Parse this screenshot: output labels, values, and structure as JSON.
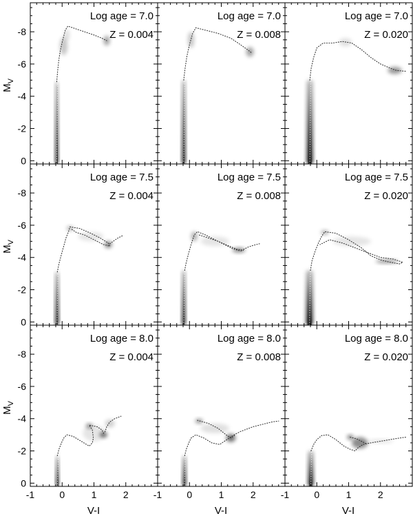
{
  "figure": {
    "xlabel": "V-I",
    "ylabel_main": "M",
    "ylabel_sub": "V"
  },
  "chart_data": [
    {
      "type": "scatter",
      "log_age_label": "Log age = 7.0",
      "z_label": "Z = 0.004",
      "xlim": [
        -1,
        3
      ],
      "ylim": [
        0.2,
        -9.8
      ],
      "y_ticks": [
        0,
        -2,
        -4,
        -6,
        -8
      ],
      "x_ticks": [
        -1,
        0,
        1,
        2
      ],
      "ms": {
        "x0": -0.22,
        "x1": -0.12,
        "y_top": -4.9,
        "y_bot": 0.2
      },
      "track": [
        [
          -0.17,
          -4.9
        ],
        [
          -0.14,
          -5.6
        ],
        [
          -0.1,
          -6.3
        ],
        [
          -0.05,
          -6.9
        ],
        [
          0.02,
          -7.5
        ],
        [
          0.1,
          -8.1
        ],
        [
          0.18,
          -8.35
        ],
        [
          0.4,
          -8.2
        ],
        [
          0.7,
          -8.0
        ],
        [
          1.0,
          -7.8
        ],
        [
          1.25,
          -7.6
        ],
        [
          1.4,
          -7.45
        ]
      ],
      "blobs": [
        [
          0.05,
          -7.1,
          0.12,
          0.55,
          0.22
        ],
        [
          0.15,
          -7.8,
          0.09,
          0.35,
          0.12
        ],
        [
          1.4,
          -7.45,
          0.1,
          0.3,
          0.35
        ]
      ]
    },
    {
      "type": "scatter",
      "log_age_label": "Log age = 7.0",
      "z_label": "Z = 0.008",
      "xlim": [
        -1,
        3
      ],
      "ylim": [
        0.2,
        -9.8
      ],
      "y_ticks": [
        0,
        -2,
        -4,
        -6,
        -8
      ],
      "x_ticks": [
        -1,
        0,
        1,
        2
      ],
      "ms": {
        "x0": -0.24,
        "x1": -0.12,
        "y_top": -5.0,
        "y_bot": 0.2
      },
      "track": [
        [
          -0.18,
          -5.0
        ],
        [
          -0.14,
          -5.7
        ],
        [
          -0.08,
          -6.5
        ],
        [
          0.0,
          -7.2
        ],
        [
          0.1,
          -7.9
        ],
        [
          0.2,
          -8.25
        ],
        [
          0.5,
          -8.1
        ],
        [
          0.9,
          -7.9
        ],
        [
          1.3,
          -7.6
        ],
        [
          1.6,
          -7.2
        ],
        [
          1.85,
          -6.85
        ],
        [
          1.95,
          -6.7
        ]
      ],
      "blobs": [
        [
          0.05,
          -7.5,
          0.1,
          0.5,
          0.22
        ],
        [
          1.9,
          -6.75,
          0.12,
          0.3,
          0.35
        ]
      ]
    },
    {
      "type": "scatter",
      "log_age_label": "Log age = 7.0",
      "z_label": "Z = 0.020",
      "xlim": [
        -1,
        3
      ],
      "ylim": [
        0.2,
        -9.8
      ],
      "y_ticks": [
        0,
        -2,
        -4,
        -6,
        -8
      ],
      "x_ticks": [
        -1,
        0,
        1,
        2
      ],
      "ms": {
        "x0": -0.32,
        "x1": -0.12,
        "y_top": -5.0,
        "y_bot": 0.2
      },
      "track": [
        [
          -0.22,
          -5.0
        ],
        [
          -0.18,
          -5.7
        ],
        [
          -0.1,
          -6.4
        ],
        [
          0.0,
          -7.0
        ],
        [
          0.2,
          -7.3
        ],
        [
          0.5,
          -7.3
        ],
        [
          0.8,
          -7.4
        ],
        [
          1.1,
          -7.3
        ],
        [
          1.4,
          -6.9
        ],
        [
          1.7,
          -6.4
        ],
        [
          2.0,
          -6.0
        ],
        [
          2.3,
          -5.75
        ],
        [
          2.5,
          -5.6
        ],
        [
          2.8,
          -5.55
        ]
      ],
      "blobs": [
        [
          0.9,
          -7.35,
          0.2,
          0.25,
          0.12
        ],
        [
          2.45,
          -5.6,
          0.22,
          0.22,
          0.4
        ]
      ]
    },
    {
      "type": "scatter",
      "log_age_label": "Log age = 7.5",
      "z_label": "Z = 0.004",
      "xlim": [
        -1,
        3
      ],
      "ylim": [
        0.2,
        -9.8
      ],
      "y_ticks": [
        0,
        -2,
        -4,
        -6,
        -8
      ],
      "x_ticks": [
        -1,
        0,
        1,
        2
      ],
      "ms": {
        "x0": -0.22,
        "x1": -0.1,
        "y_top": -3.1,
        "y_bot": 0.2
      },
      "track": [
        [
          -0.15,
          -3.1
        ],
        [
          -0.1,
          -3.6
        ],
        [
          -0.02,
          -4.2
        ],
        [
          0.05,
          -4.7
        ],
        [
          0.12,
          -5.2
        ],
        [
          0.2,
          -5.6
        ],
        [
          0.25,
          -5.9
        ],
        [
          0.55,
          -5.8
        ],
        [
          0.9,
          -5.5
        ],
        [
          1.2,
          -5.2
        ],
        [
          1.45,
          -4.9
        ],
        [
          1.5,
          -4.7
        ],
        [
          1.3,
          -4.8
        ],
        [
          1.0,
          -5.1
        ],
        [
          0.7,
          -5.4
        ],
        [
          0.45,
          -5.55
        ],
        [
          0.3,
          -5.75
        ]
      ],
      "track2": [
        [
          1.5,
          -4.85
        ],
        [
          1.6,
          -5.0
        ],
        [
          1.75,
          -5.2
        ],
        [
          1.9,
          -5.35
        ]
      ],
      "blobs": [
        [
          0.25,
          -5.8,
          0.1,
          0.15,
          0.3
        ],
        [
          1.45,
          -4.8,
          0.12,
          0.22,
          0.45
        ],
        [
          0.9,
          -5.3,
          0.4,
          0.28,
          0.1
        ]
      ]
    },
    {
      "type": "scatter",
      "log_age_label": "Log age = 7.5",
      "z_label": "Z = 0.008",
      "xlim": [
        -1,
        3
      ],
      "ylim": [
        0.2,
        -9.8
      ],
      "y_ticks": [
        0,
        -2,
        -4,
        -6,
        -8
      ],
      "x_ticks": [
        -1,
        0,
        1,
        2
      ],
      "ms": {
        "x0": -0.24,
        "x1": -0.12,
        "y_top": -3.2,
        "y_bot": 0.2
      },
      "track": [
        [
          -0.15,
          -3.2
        ],
        [
          -0.1,
          -3.7
        ],
        [
          -0.02,
          -4.3
        ],
        [
          0.05,
          -4.8
        ],
        [
          0.15,
          -5.4
        ],
        [
          0.25,
          -5.6
        ],
        [
          0.5,
          -5.4
        ],
        [
          0.8,
          -5.1
        ],
        [
          1.1,
          -4.8
        ],
        [
          1.35,
          -4.55
        ],
        [
          1.6,
          -4.4
        ],
        [
          1.7,
          -4.45
        ],
        [
          1.5,
          -4.5
        ],
        [
          1.2,
          -4.75
        ],
        [
          0.9,
          -5.0
        ],
        [
          0.6,
          -5.2
        ],
        [
          0.3,
          -5.4
        ]
      ],
      "track2": [
        [
          1.7,
          -4.5
        ],
        [
          1.85,
          -4.65
        ],
        [
          2.0,
          -4.75
        ],
        [
          2.2,
          -4.85
        ]
      ],
      "blobs": [
        [
          0.15,
          -5.3,
          0.1,
          0.3,
          0.3
        ],
        [
          1.55,
          -4.45,
          0.2,
          0.15,
          0.45
        ],
        [
          0.8,
          -5.0,
          0.45,
          0.3,
          0.1
        ]
      ]
    },
    {
      "type": "scatter",
      "log_age_label": "Log age = 7.5",
      "z_label": "Z = 0.020",
      "xlim": [
        -1,
        3
      ],
      "ylim": [
        0.2,
        -9.8
      ],
      "y_ticks": [
        0,
        -2,
        -4,
        -6,
        -8
      ],
      "x_ticks": [
        -1,
        0,
        1,
        2
      ],
      "ms": {
        "x0": -0.34,
        "x1": -0.12,
        "y_top": -3.2,
        "y_bot": 0.2
      },
      "track": [
        [
          -0.2,
          -3.2
        ],
        [
          -0.15,
          -3.8
        ],
        [
          -0.05,
          -4.4
        ],
        [
          0.05,
          -4.9
        ],
        [
          0.15,
          -5.3
        ],
        [
          0.25,
          -5.6
        ],
        [
          0.6,
          -5.5
        ],
        [
          1.0,
          -5.1
        ],
        [
          1.4,
          -4.6
        ],
        [
          1.7,
          -4.1
        ],
        [
          2.0,
          -3.85
        ],
        [
          2.3,
          -3.7
        ],
        [
          2.6,
          -3.6
        ],
        [
          2.7,
          -3.7
        ],
        [
          2.4,
          -3.9
        ],
        [
          2.0,
          -4.0
        ],
        [
          1.6,
          -4.3
        ],
        [
          1.2,
          -4.6
        ],
        [
          0.8,
          -4.9
        ],
        [
          0.4,
          -5.1
        ],
        [
          0.1,
          -4.8
        ]
      ],
      "blobs": [
        [
          0.25,
          -5.55,
          0.12,
          0.15,
          0.3
        ],
        [
          2.2,
          -3.75,
          0.35,
          0.12,
          0.4
        ],
        [
          1.1,
          -5.0,
          0.6,
          0.3,
          0.1
        ]
      ]
    },
    {
      "type": "scatter",
      "log_age_label": "Log age = 8.0",
      "z_label": "Z = 0.004",
      "xlim": [
        -1,
        3
      ],
      "ylim": [
        0.2,
        -9.8
      ],
      "y_ticks": [
        0,
        -2,
        -4,
        -6,
        -8
      ],
      "x_ticks": [
        -1,
        0,
        1,
        2
      ],
      "ms": {
        "x0": -0.2,
        "x1": -0.1,
        "y_top": -1.7,
        "y_bot": 0.2
      },
      "track": [
        [
          -0.15,
          -1.7
        ],
        [
          -0.1,
          -2.1
        ],
        [
          -0.02,
          -2.5
        ],
        [
          0.05,
          -2.8
        ],
        [
          0.15,
          -3.0
        ],
        [
          0.35,
          -2.9
        ],
        [
          0.6,
          -2.6
        ],
        [
          0.85,
          -2.3
        ],
        [
          0.95,
          -2.5
        ],
        [
          0.98,
          -2.8
        ],
        [
          0.95,
          -3.3
        ],
        [
          0.85,
          -3.6
        ],
        [
          1.1,
          -3.5
        ],
        [
          1.25,
          -3.3
        ],
        [
          1.3,
          -3.1
        ],
        [
          1.35,
          -3.2
        ],
        [
          1.4,
          -3.5
        ],
        [
          1.5,
          -3.8
        ],
        [
          1.65,
          -4.0
        ],
        [
          1.85,
          -4.15
        ]
      ],
      "blobs": [
        [
          0.85,
          -3.55,
          0.1,
          0.15,
          0.45
        ],
        [
          1.3,
          -3.0,
          0.12,
          0.18,
          0.55
        ],
        [
          1.0,
          -3.1,
          0.35,
          0.5,
          0.1
        ],
        [
          1.5,
          -3.7,
          0.15,
          0.25,
          0.18
        ]
      ]
    },
    {
      "type": "scatter",
      "log_age_label": "Log age = 8.0",
      "z_label": "Z = 0.008",
      "xlim": [
        -1,
        3
      ],
      "ylim": [
        0.2,
        -9.8
      ],
      "y_ticks": [
        0,
        -2,
        -4,
        -6,
        -8
      ],
      "x_ticks": [
        -1,
        0,
        1,
        2
      ],
      "ms": {
        "x0": -0.22,
        "x1": -0.1,
        "y_top": -1.7,
        "y_bot": 0.2
      },
      "track": [
        [
          -0.15,
          -1.7
        ],
        [
          -0.1,
          -2.1
        ],
        [
          -0.02,
          -2.5
        ],
        [
          0.05,
          -2.8
        ],
        [
          0.2,
          -3.0
        ],
        [
          0.45,
          -2.8
        ],
        [
          0.7,
          -2.5
        ],
        [
          0.95,
          -2.4
        ],
        [
          1.1,
          -2.6
        ],
        [
          1.25,
          -2.8
        ],
        [
          1.4,
          -3.0
        ],
        [
          1.6,
          -3.2
        ],
        [
          1.8,
          -3.35
        ],
        [
          2.0,
          -3.5
        ],
        [
          2.2,
          -3.6
        ],
        [
          2.4,
          -3.7
        ],
        [
          2.6,
          -3.8
        ],
        [
          2.8,
          -3.85
        ]
      ],
      "track2": [
        [
          0.25,
          -3.9
        ],
        [
          0.6,
          -3.7
        ],
        [
          0.9,
          -3.4
        ],
        [
          1.15,
          -3.0
        ],
        [
          1.3,
          -2.8
        ],
        [
          1.45,
          -3.0
        ]
      ],
      "blobs": [
        [
          0.3,
          -3.85,
          0.12,
          0.15,
          0.4
        ],
        [
          1.3,
          -2.8,
          0.15,
          0.25,
          0.55
        ],
        [
          0.8,
          -3.4,
          0.45,
          0.3,
          0.12
        ]
      ]
    },
    {
      "type": "scatter",
      "log_age_label": "Log age = 8.0",
      "z_label": "Z = 0.020",
      "xlim": [
        -1,
        3
      ],
      "ylim": [
        0.2,
        -9.8
      ],
      "y_ticks": [
        0,
        -2,
        -4,
        -6,
        -8
      ],
      "x_ticks": [
        -1,
        0,
        1,
        2
      ],
      "ms": {
        "x0": -0.28,
        "x1": -0.1,
        "y_top": -2.0,
        "y_bot": 0.2
      },
      "track": [
        [
          -0.18,
          -2.0
        ],
        [
          -0.1,
          -2.4
        ],
        [
          0.0,
          -2.7
        ],
        [
          0.15,
          -2.95
        ],
        [
          0.35,
          -3.0
        ],
        [
          0.6,
          -2.7
        ],
        [
          0.85,
          -2.3
        ],
        [
          1.05,
          -2.1
        ],
        [
          1.2,
          -2.0
        ],
        [
          1.3,
          -2.2
        ],
        [
          1.45,
          -2.4
        ],
        [
          1.7,
          -2.5
        ],
        [
          2.0,
          -2.6
        ],
        [
          2.3,
          -2.7
        ],
        [
          2.6,
          -2.8
        ],
        [
          2.8,
          -2.85
        ]
      ],
      "track2": [
        [
          1.05,
          -2.85
        ],
        [
          1.25,
          -2.75
        ],
        [
          1.4,
          -2.6
        ],
        [
          1.55,
          -2.45
        ]
      ],
      "blobs": [
        [
          1.05,
          -2.85,
          0.1,
          0.15,
          0.5
        ],
        [
          1.35,
          -2.5,
          0.25,
          0.35,
          0.45
        ],
        [
          2.0,
          -2.6,
          0.4,
          0.12,
          0.1
        ]
      ]
    }
  ]
}
